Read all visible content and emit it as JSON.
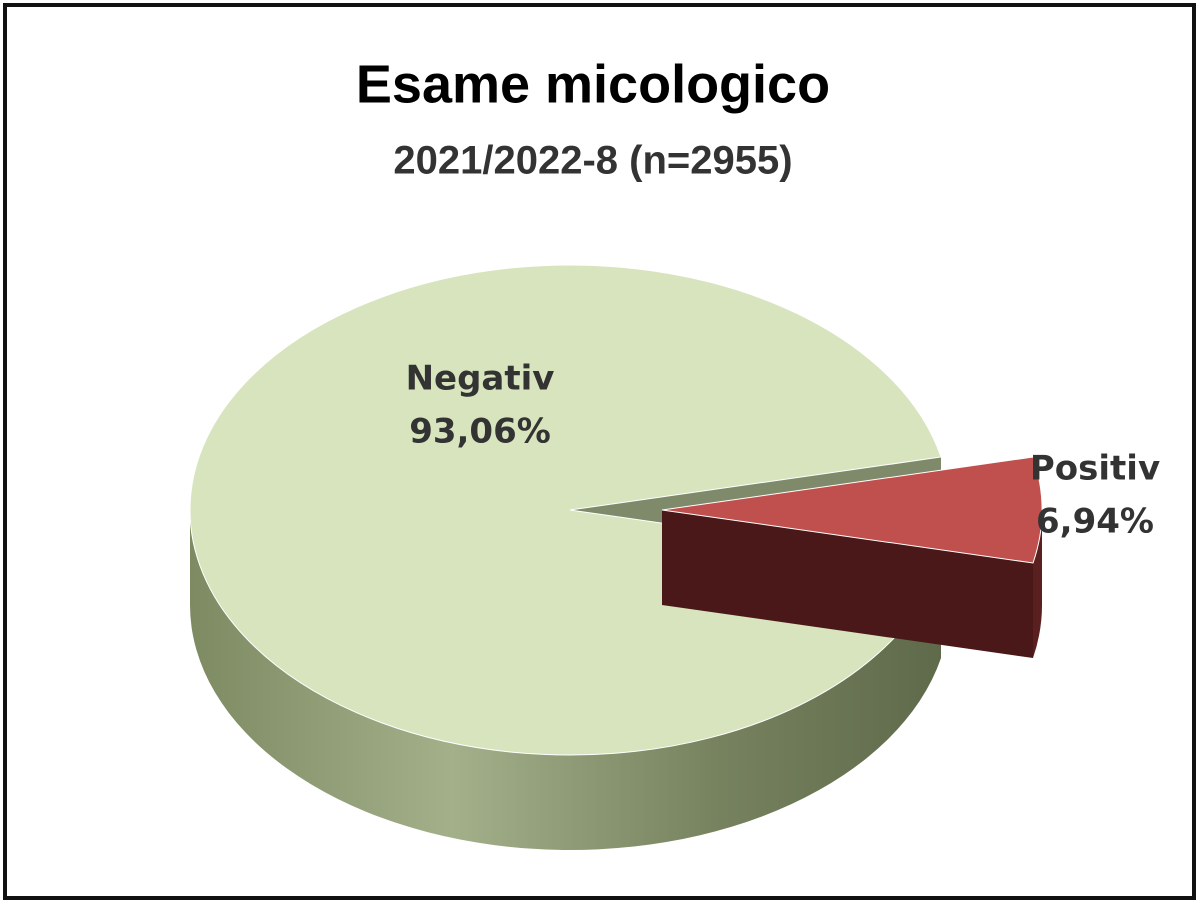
{
  "chart_data": {
    "type": "pie",
    "title": "Esame micologico",
    "subtitle": "2021/2022-8 (n=2955)",
    "categories": [
      "Negativ",
      "Positiv"
    ],
    "values": [
      93.06,
      6.94
    ],
    "value_labels": [
      "93,06%",
      "6,94%"
    ],
    "colors": [
      "#d7e4bd",
      "#c0504d"
    ],
    "exploded": [
      false,
      true
    ]
  }
}
